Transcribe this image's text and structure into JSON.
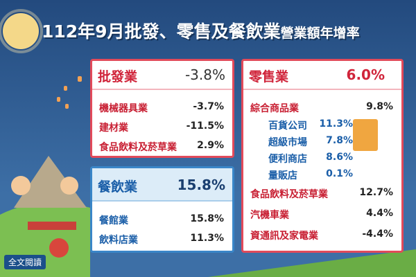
{
  "title": "112年9月批發、零售及餐飲業",
  "title_suffix": "營業額年增率",
  "wholesale": {
    "name": "批發業",
    "value": "-3.8%",
    "items": [
      {
        "name": "機械器具業",
        "value": "-3.7%"
      },
      {
        "name": "建材業",
        "value": "-11.5%"
      },
      {
        "name": "食品飲料及菸草業",
        "value": "2.9%"
      }
    ]
  },
  "food": {
    "name": "餐飲業",
    "value": "15.8%",
    "items": [
      {
        "name": "餐館業",
        "value": "15.8%"
      },
      {
        "name": "飲料店業",
        "value": "11.3%"
      }
    ]
  },
  "retail": {
    "name": "零售業",
    "value": "6.0%",
    "items": [
      {
        "name": "綜合商品業",
        "value": "9.8%",
        "sub": [
          {
            "name": "百貨公司",
            "value": "11.3%"
          },
          {
            "name": "超級市場",
            "value": "7.8%"
          },
          {
            "name": "便利商店",
            "value": "8.6%"
          },
          {
            "name": "量販店",
            "value": "0.1%"
          }
        ]
      },
      {
        "name": "食品飲料及菸草業",
        "value": "12.7%"
      },
      {
        "name": "汽機車業",
        "value": "4.4%"
      },
      {
        "name": "資通訊及家電業",
        "value": "-4.4%"
      }
    ]
  },
  "read_more": "全文閱讀"
}
